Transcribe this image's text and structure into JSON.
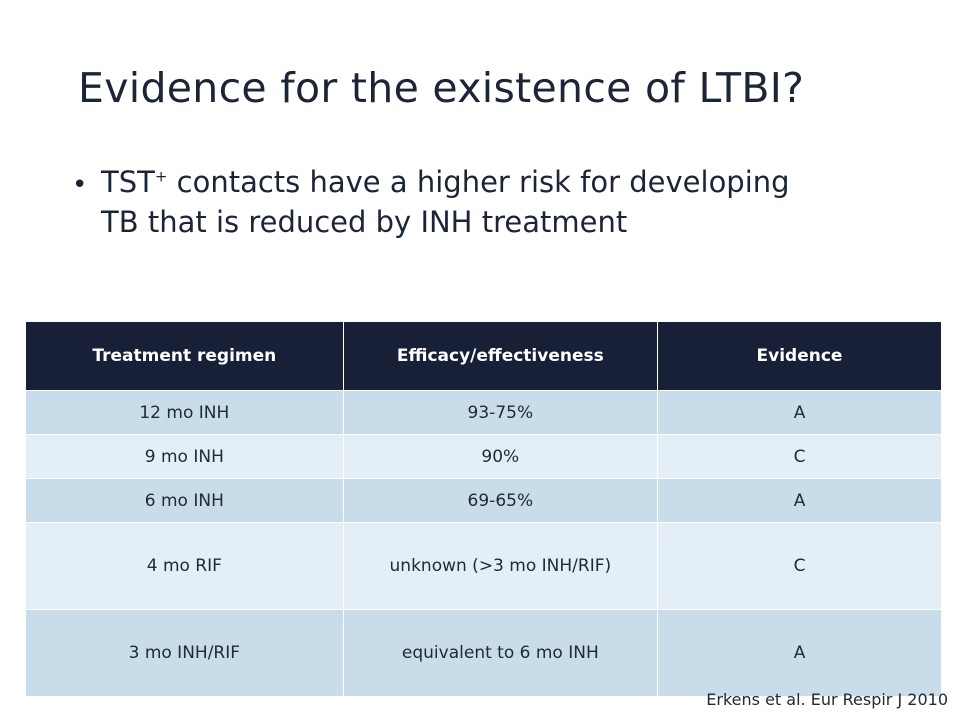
{
  "slide": {
    "title": "Evidence for the existence of LTBI?",
    "bullet": {
      "prefix": "TST",
      "superscript": "+",
      "text": " contacts have a higher risk for developing TB that is reduced by INH treatment"
    },
    "citation": "Erkens et al. Eur Respir J 2010"
  },
  "table": {
    "headers": [
      "Treatment regimen",
      "Efficacy/effectiveness",
      "Evidence"
    ],
    "rows": [
      {
        "regimen": "12 mo INH",
        "efficacy": "93-75%",
        "evidence": "A"
      },
      {
        "regimen": "9 mo INH",
        "efficacy": "90%",
        "evidence": "C"
      },
      {
        "regimen": "6 mo INH",
        "efficacy": "69-65%",
        "evidence": "A"
      },
      {
        "regimen": "4 mo RIF",
        "efficacy": "unknown (>3 mo INH/RIF)",
        "evidence": "C"
      },
      {
        "regimen": "3 mo INH/RIF",
        "efficacy": "equivalent to 6 mo INH",
        "evidence": "A"
      }
    ]
  },
  "colors": {
    "header_bg": "#172036",
    "row_band_dark": "#c9dcea",
    "row_band_light": "#e4eef6",
    "text": "#1c2538"
  }
}
